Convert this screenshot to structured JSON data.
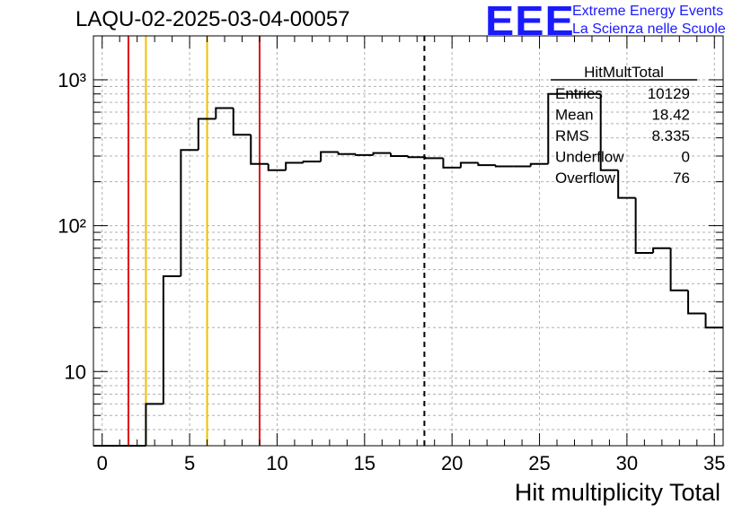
{
  "title": "LAQU-02-2025-03-04-00057",
  "logo": {
    "text": "EEE",
    "line1": "Extreme Energy Events",
    "line2": "La Scienza nelle Scuole",
    "color": "#1a1aff"
  },
  "chart_data": {
    "type": "histogram",
    "xlabel": "Hit multiplicity Total",
    "ylabel": "",
    "log_y": true,
    "grid": true,
    "xlim": [
      -0.5,
      35.5
    ],
    "ylim": [
      3.1,
      2000
    ],
    "x_ticks": [
      0,
      5,
      10,
      15,
      20,
      25,
      30,
      35
    ],
    "y_ticks": [
      {
        "value": 10,
        "label": "10"
      },
      {
        "value": 100,
        "label": "10²"
      },
      {
        "value": 1000,
        "label": "10³"
      }
    ],
    "bin_edges": [
      -0.5,
      0.5,
      1.5,
      2.5,
      3.5,
      4.5,
      5.5,
      6.5,
      7.5,
      8.5,
      9.5,
      10.5,
      11.5,
      12.5,
      13.5,
      14.5,
      15.5,
      16.5,
      17.5,
      18.5,
      19.5,
      20.5,
      21.5,
      22.5,
      23.5,
      24.5,
      25.5,
      26.5,
      27.5,
      28.5,
      29.5,
      30.5,
      31.5,
      32.5,
      33.5,
      34.5,
      35.5
    ],
    "bin_values": [
      0,
      0,
      0,
      6,
      45,
      330,
      540,
      640,
      420,
      265,
      240,
      270,
      275,
      320,
      310,
      305,
      315,
      300,
      295,
      290,
      250,
      270,
      260,
      255,
      255,
      265,
      800,
      800,
      800,
      240,
      155,
      65,
      70,
      36,
      25,
      20
    ],
    "vertical_lines": [
      {
        "x": 1.5,
        "color": "#e01010",
        "style": "solid"
      },
      {
        "x": 2.5,
        "color": "#f0c000",
        "style": "solid"
      },
      {
        "x": 6.0,
        "color": "#f0c000",
        "style": "solid"
      },
      {
        "x": 9.0,
        "color": "#e01010",
        "style": "solid"
      },
      {
        "x": 18.42,
        "color": "#000000",
        "style": "dashed"
      }
    ],
    "stats_box": {
      "title": "HitMultTotal",
      "rows": [
        {
          "label": "Entries",
          "value": "10129"
        },
        {
          "label": "Mean",
          "value": "18.42"
        },
        {
          "label": "RMS",
          "value": "8.335"
        },
        {
          "label": "Underflow",
          "value": "0"
        },
        {
          "label": "Overflow",
          "value": "76"
        }
      ]
    }
  }
}
